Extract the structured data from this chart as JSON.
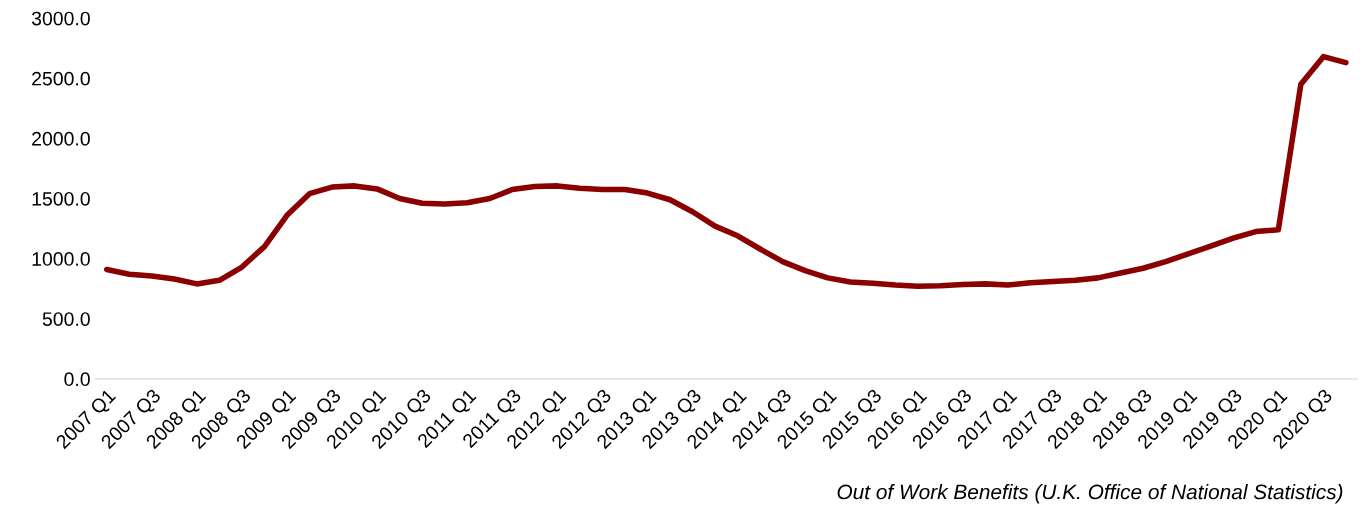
{
  "chart_data": {
    "type": "line",
    "categories": [
      "2007 Q1",
      null,
      "2007 Q3",
      null,
      "2008 Q1",
      null,
      "2008 Q3",
      null,
      "2009 Q1",
      null,
      "2009 Q3",
      null,
      "2010 Q1",
      null,
      "2010 Q3",
      null,
      "2011 Q1",
      null,
      "2011 Q3",
      null,
      "2012 Q1",
      null,
      "2012 Q3",
      null,
      "2013 Q1",
      null,
      "2013 Q3",
      null,
      "2014 Q1",
      null,
      "2014 Q3",
      null,
      "2015 Q1",
      null,
      "2015 Q3",
      null,
      "2016 Q1",
      null,
      "2016 Q3",
      null,
      "2017 Q1",
      null,
      "2017 Q3",
      null,
      "2018 Q1",
      null,
      "2018 Q3",
      null,
      "2019 Q1",
      null,
      "2019 Q3",
      null,
      "2020 Q1",
      null,
      "2020 Q3",
      null
    ],
    "series": [
      {
        "color": "#8b0000",
        "values": [
          910,
          870,
          855,
          830,
          790,
          820,
          930,
          1100,
          1360,
          1540,
          1595,
          1605,
          1580,
          1500,
          1460,
          1455,
          1465,
          1500,
          1575,
          1600,
          1605,
          1585,
          1575,
          1575,
          1545,
          1490,
          1390,
          1270,
          1190,
          1080,
          975,
          900,
          840,
          805,
          795,
          780,
          770,
          775,
          785,
          790,
          780,
          800,
          810,
          820,
          840,
          880,
          920,
          975,
          1040,
          1105,
          1170,
          1225,
          1240,
          2450,
          2680,
          2630
        ]
      }
    ],
    "ylim": [
      0,
      3000
    ],
    "yticks": [
      {
        "value": 0,
        "label": "0.0"
      },
      {
        "value": 500,
        "label": "500.0"
      },
      {
        "value": 1000,
        "label": "1000.0"
      },
      {
        "value": 1500,
        "label": "1500.0"
      },
      {
        "value": 2000,
        "label": "2000.0"
      },
      {
        "value": 2500,
        "label": "2500.0"
      },
      {
        "value": 3000,
        "label": "3000.0"
      }
    ],
    "annotations": [
      "Out of Work Benefits (U.K. Office of National Statistics)"
    ],
    "grid": false,
    "legend": false,
    "marker": "none",
    "line_style": "solid"
  }
}
